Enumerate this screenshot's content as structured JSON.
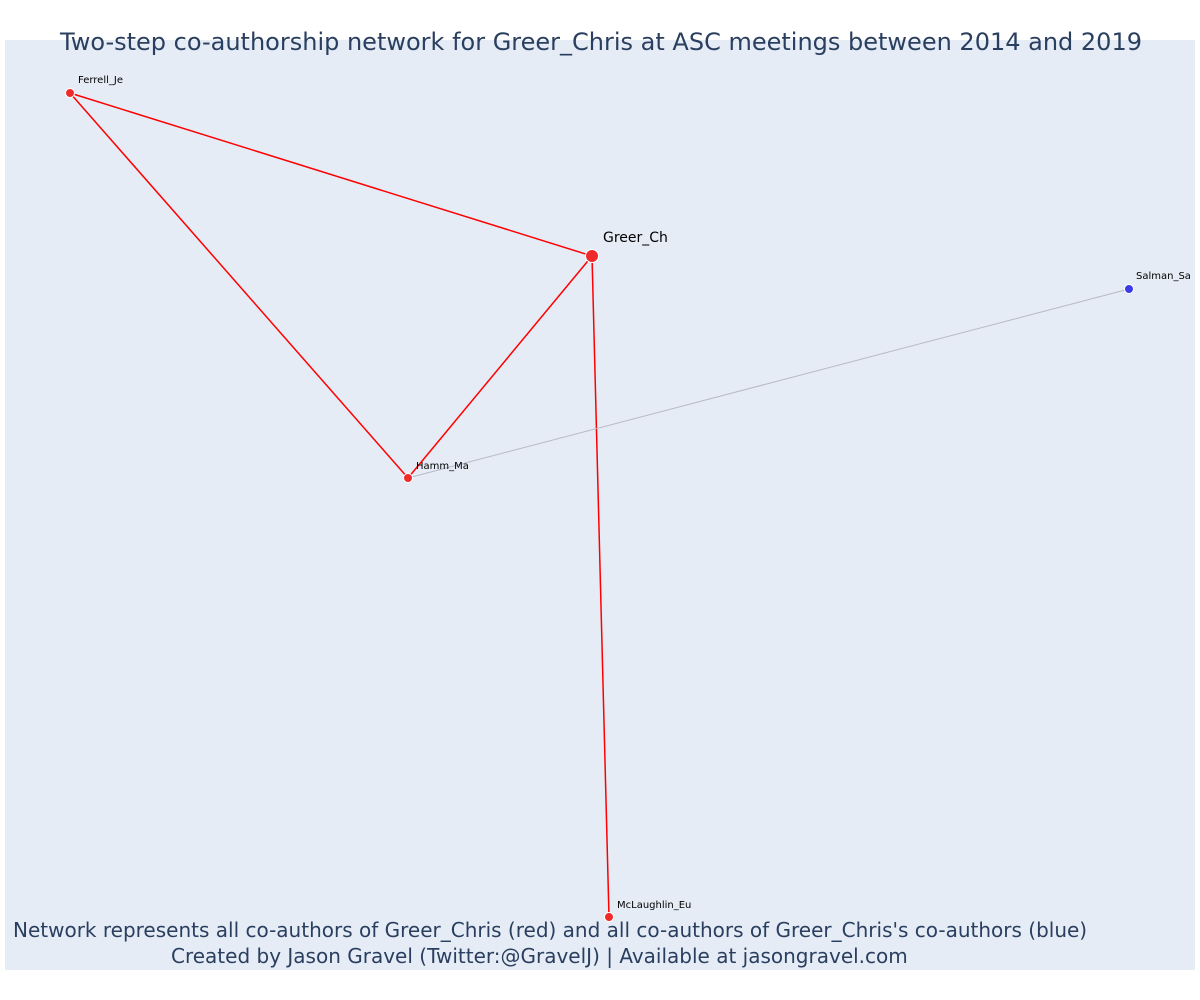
{
  "title": "Two-step co-authorship network for Greer_Chris at ASC meetings between 2014 and 2019",
  "caption": {
    "line1": "Network represents all co-authors of Greer_Chris (red) and all co-authors of Greer_Chris's co-authors (blue)",
    "line2": "Created by Jason Gravel (Twitter:@GravelJ) | Available at jasongravel.com"
  },
  "colors": {
    "background": "#e5ecf6",
    "coauthor": "#ee2a2a",
    "second_step": "#3b3be8",
    "edge_primary": "#ff0000",
    "edge_secondary": "#b8b8c8"
  },
  "network": {
    "nodes": [
      {
        "id": "Greer_Ch",
        "label": "Greer_Ch",
        "group": "focal"
      },
      {
        "id": "Ferrell_Je",
        "label": "Ferrell_Je",
        "group": "coauthor"
      },
      {
        "id": "Hamm_Ma",
        "label": "Hamm_Ma",
        "group": "coauthor"
      },
      {
        "id": "McLaughlin_Eu",
        "label": "McLaughlin_Eu",
        "group": "coauthor"
      },
      {
        "id": "Salman_Sa",
        "label": "Salman_Sa",
        "group": "second_step"
      }
    ],
    "edges": [
      {
        "source": "Ferrell_Je",
        "target": "Greer_Ch",
        "type": "primary"
      },
      {
        "source": "Ferrell_Je",
        "target": "Hamm_Ma",
        "type": "primary"
      },
      {
        "source": "Hamm_Ma",
        "target": "Greer_Ch",
        "type": "primary"
      },
      {
        "source": "Greer_Ch",
        "target": "McLaughlin_Eu",
        "type": "primary"
      },
      {
        "source": "Hamm_Ma",
        "target": "Salman_Sa",
        "type": "secondary"
      }
    ]
  }
}
